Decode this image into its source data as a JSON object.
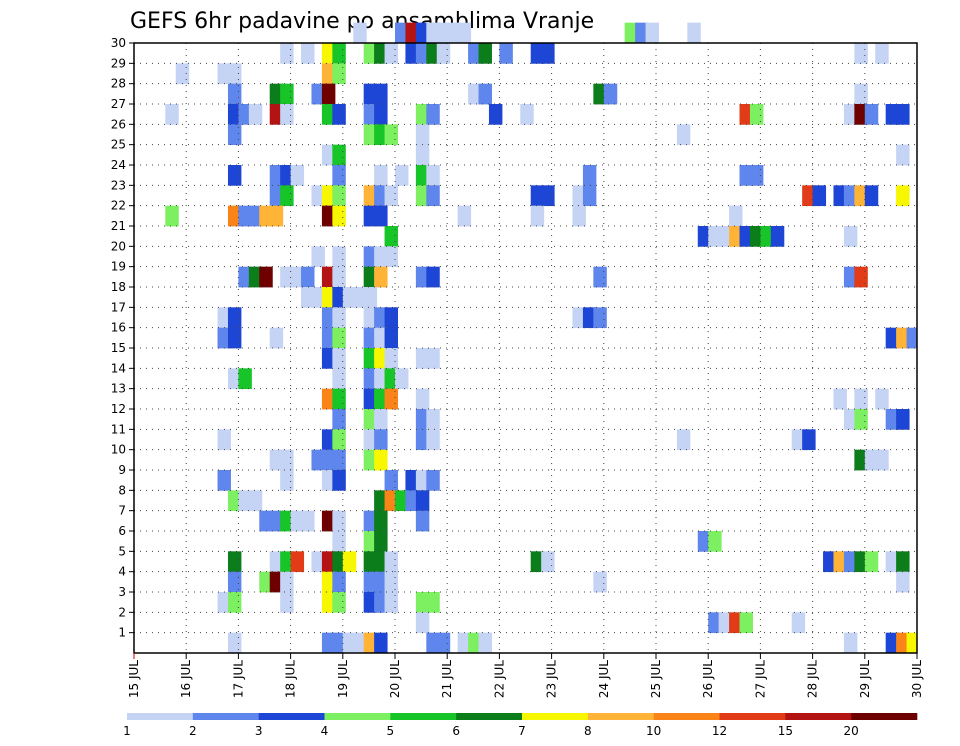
{
  "chart_data": {
    "type": "heatmap",
    "title": "GEFS 6hr padavine po ansamblima Vranje",
    "xlabel": "",
    "ylabel": "",
    "x_ticks": [
      "15 JUL",
      "16 JUL",
      "17 JUL",
      "18 JUL",
      "19 JUL",
      "20 JUL",
      "21 JUL",
      "22 JUL",
      "23 JUL",
      "24 JUL",
      "25 JUL",
      "26 JUL",
      "27 JUL",
      "28 JUL",
      "29 JUL",
      "30 JUL"
    ],
    "x_range": [
      0,
      15
    ],
    "x_unit": "days from 15 JUL",
    "time_step_hours": 6,
    "y_ticks": [
      "1",
      "2",
      "3",
      "4",
      "5",
      "6",
      "7",
      "8",
      "9",
      "10",
      "11",
      "12",
      "13",
      "14",
      "15",
      "16",
      "17",
      "18",
      "19",
      "20",
      "21",
      "22",
      "23",
      "24",
      "25",
      "26",
      "27",
      "28",
      "29",
      "30"
    ],
    "y_range": [
      0,
      30
    ],
    "grid": "dotted",
    "colorbar": {
      "placement": "bottom",
      "labels": [
        "1",
        "2",
        "3",
        "4",
        "5",
        "6",
        "7",
        "8",
        "10",
        "12",
        "15",
        "20"
      ],
      "colors": [
        "#c5d3f5",
        "#5f86ec",
        "#1e46d6",
        "#7cf060",
        "#18c528",
        "#0b7d1a",
        "#f7f701",
        "#ffb437",
        "#fb8419",
        "#e23b17",
        "#b41313",
        "#6e0000"
      ]
    },
    "cells": [
      [
        30,
        4.2,
        0
      ],
      [
        30,
        5.0,
        1
      ],
      [
        30,
        5.2,
        10
      ],
      [
        30,
        5.4,
        2
      ],
      [
        30,
        5.6,
        0
      ],
      [
        30,
        5.8,
        0
      ],
      [
        30,
        6.0,
        0
      ],
      [
        30,
        6.2,
        0
      ],
      [
        30,
        9.4,
        3
      ],
      [
        30,
        9.6,
        1
      ],
      [
        30,
        9.8,
        0
      ],
      [
        30,
        10.6,
        0
      ],
      [
        29,
        2.8,
        0
      ],
      [
        29,
        3.2,
        0
      ],
      [
        29,
        3.6,
        6
      ],
      [
        29,
        3.8,
        4
      ],
      [
        29,
        4.4,
        3
      ],
      [
        29,
        4.6,
        5
      ],
      [
        29,
        4.8,
        0
      ],
      [
        29,
        5.2,
        2
      ],
      [
        29,
        5.4,
        1
      ],
      [
        29,
        5.6,
        5
      ],
      [
        29,
        5.8,
        0
      ],
      [
        29,
        6.4,
        1
      ],
      [
        29,
        6.6,
        5
      ],
      [
        29,
        7.0,
        1
      ],
      [
        29,
        7.6,
        2
      ],
      [
        29,
        7.8,
        2
      ],
      [
        29,
        13.8,
        0
      ],
      [
        29,
        14.2,
        0
      ],
      [
        28,
        0.8,
        0
      ],
      [
        28,
        1.6,
        0
      ],
      [
        28,
        1.8,
        0
      ],
      [
        28,
        3.6,
        7
      ],
      [
        28,
        3.8,
        3
      ],
      [
        27,
        1.8,
        1
      ],
      [
        27,
        2.6,
        5
      ],
      [
        27,
        2.8,
        4
      ],
      [
        27,
        3.4,
        1
      ],
      [
        27,
        3.6,
        11
      ],
      [
        27,
        4.4,
        2
      ],
      [
        27,
        4.6,
        2
      ],
      [
        27,
        6.4,
        0
      ],
      [
        27,
        6.6,
        1
      ],
      [
        27,
        8.8,
        5
      ],
      [
        27,
        9.0,
        1
      ],
      [
        27,
        13.8,
        0
      ],
      [
        26,
        0.6,
        0
      ],
      [
        26,
        1.8,
        2
      ],
      [
        26,
        2.0,
        1
      ],
      [
        26,
        2.2,
        0
      ],
      [
        26,
        2.6,
        10
      ],
      [
        26,
        2.8,
        0
      ],
      [
        26,
        3.6,
        4
      ],
      [
        26,
        3.8,
        2
      ],
      [
        26,
        4.4,
        1
      ],
      [
        26,
        4.6,
        2
      ],
      [
        26,
        5.4,
        3
      ],
      [
        26,
        5.6,
        1
      ],
      [
        26,
        6.8,
        2
      ],
      [
        26,
        7.4,
        0
      ],
      [
        26,
        11.6,
        9
      ],
      [
        26,
        11.8,
        3
      ],
      [
        26,
        13.6,
        0
      ],
      [
        26,
        13.8,
        11
      ],
      [
        26,
        14.0,
        1
      ],
      [
        26,
        14.4,
        2
      ],
      [
        26,
        14.6,
        2
      ],
      [
        25,
        1.8,
        1
      ],
      [
        25,
        4.4,
        3
      ],
      [
        25,
        4.6,
        4
      ],
      [
        25,
        4.8,
        3
      ],
      [
        25,
        5.4,
        0
      ],
      [
        25,
        10.4,
        0
      ],
      [
        24,
        3.6,
        0
      ],
      [
        24,
        3.8,
        4
      ],
      [
        24,
        5.4,
        0
      ],
      [
        24,
        14.6,
        0
      ],
      [
        23,
        1.8,
        2
      ],
      [
        23,
        2.6,
        1
      ],
      [
        23,
        2.8,
        2
      ],
      [
        23,
        3.0,
        0
      ],
      [
        23,
        3.8,
        1
      ],
      [
        23,
        4.6,
        0
      ],
      [
        23,
        5.0,
        0
      ],
      [
        23,
        5.4,
        4
      ],
      [
        23,
        5.6,
        0
      ],
      [
        23,
        8.6,
        1
      ],
      [
        23,
        11.6,
        1
      ],
      [
        23,
        11.8,
        1
      ],
      [
        22,
        2.6,
        1
      ],
      [
        22,
        2.8,
        4
      ],
      [
        22,
        3.4,
        0
      ],
      [
        22,
        3.6,
        6
      ],
      [
        22,
        3.8,
        3
      ],
      [
        22,
        4.4,
        7
      ],
      [
        22,
        4.6,
        1
      ],
      [
        22,
        4.8,
        0
      ],
      [
        22,
        5.4,
        3
      ],
      [
        22,
        5.6,
        1
      ],
      [
        22,
        7.6,
        2
      ],
      [
        22,
        7.8,
        2
      ],
      [
        22,
        8.4,
        0
      ],
      [
        22,
        8.6,
        1
      ],
      [
        22,
        12.8,
        9
      ],
      [
        22,
        13.0,
        2
      ],
      [
        22,
        13.4,
        2
      ],
      [
        22,
        13.6,
        1
      ],
      [
        22,
        13.8,
        7
      ],
      [
        22,
        14.0,
        2
      ],
      [
        22,
        14.6,
        6
      ],
      [
        21,
        0.6,
        3
      ],
      [
        21,
        1.8,
        8
      ],
      [
        21,
        2.0,
        1
      ],
      [
        21,
        2.2,
        1
      ],
      [
        21,
        2.4,
        7
      ],
      [
        21,
        2.6,
        7
      ],
      [
        21,
        3.6,
        11
      ],
      [
        21,
        3.8,
        6
      ],
      [
        21,
        4.4,
        2
      ],
      [
        21,
        4.6,
        2
      ],
      [
        21,
        6.2,
        0
      ],
      [
        21,
        7.6,
        0
      ],
      [
        21,
        8.4,
        0
      ],
      [
        21,
        11.4,
        0
      ],
      [
        20,
        4.8,
        4
      ],
      [
        20,
        10.8,
        2
      ],
      [
        20,
        11.0,
        0
      ],
      [
        20,
        11.2,
        0
      ],
      [
        20,
        11.4,
        7
      ],
      [
        20,
        11.6,
        2
      ],
      [
        20,
        11.8,
        5
      ],
      [
        20,
        12.0,
        4
      ],
      [
        20,
        12.2,
        2
      ],
      [
        20,
        13.6,
        0
      ],
      [
        19,
        3.4,
        0
      ],
      [
        19,
        3.8,
        0
      ],
      [
        19,
        4.4,
        1
      ],
      [
        19,
        4.6,
        0
      ],
      [
        19,
        4.8,
        0
      ],
      [
        18,
        2.0,
        1
      ],
      [
        18,
        2.2,
        5
      ],
      [
        18,
        2.4,
        11
      ],
      [
        18,
        2.8,
        0
      ],
      [
        18,
        3.0,
        0
      ],
      [
        18,
        3.2,
        1
      ],
      [
        18,
        3.6,
        10
      ],
      [
        18,
        3.8,
        0
      ],
      [
        18,
        4.4,
        5
      ],
      [
        18,
        4.6,
        7
      ],
      [
        18,
        5.4,
        1
      ],
      [
        18,
        5.6,
        2
      ],
      [
        18,
        8.8,
        1
      ],
      [
        18,
        13.6,
        1
      ],
      [
        18,
        13.8,
        9
      ],
      [
        17,
        3.2,
        0
      ],
      [
        17,
        3.4,
        0
      ],
      [
        17,
        3.6,
        6
      ],
      [
        17,
        3.8,
        2
      ],
      [
        17,
        4.0,
        0
      ],
      [
        17,
        4.2,
        0
      ],
      [
        17,
        4.4,
        0
      ],
      [
        16,
        1.6,
        0
      ],
      [
        16,
        1.8,
        2
      ],
      [
        16,
        3.6,
        1
      ],
      [
        16,
        3.8,
        0
      ],
      [
        16,
        4.4,
        0
      ],
      [
        16,
        4.6,
        1
      ],
      [
        16,
        4.8,
        2
      ],
      [
        16,
        8.4,
        0
      ],
      [
        16,
        8.6,
        2
      ],
      [
        16,
        8.8,
        1
      ],
      [
        16,
        15.0,
        1
      ],
      [
        15,
        1.6,
        1
      ],
      [
        15,
        1.8,
        2
      ],
      [
        15,
        2.6,
        0
      ],
      [
        15,
        3.6,
        1
      ],
      [
        15,
        3.8,
        3
      ],
      [
        15,
        4.4,
        1
      ],
      [
        15,
        4.6,
        0
      ],
      [
        15,
        4.8,
        2
      ],
      [
        15,
        14.4,
        2
      ],
      [
        15,
        14.6,
        7
      ],
      [
        15,
        14.8,
        1
      ],
      [
        14,
        3.6,
        2
      ],
      [
        14,
        3.8,
        0
      ],
      [
        14,
        4.4,
        4
      ],
      [
        14,
        4.6,
        6
      ],
      [
        14,
        4.8,
        0
      ],
      [
        14,
        5.4,
        0
      ],
      [
        14,
        5.6,
        0
      ],
      [
        13,
        1.8,
        0
      ],
      [
        13,
        2.0,
        4
      ],
      [
        13,
        3.8,
        0
      ],
      [
        13,
        4.4,
        1
      ],
      [
        13,
        4.6,
        0
      ],
      [
        13,
        4.8,
        4
      ],
      [
        13,
        5.0,
        0
      ],
      [
        12,
        3.6,
        8
      ],
      [
        12,
        3.8,
        4
      ],
      [
        12,
        4.4,
        2
      ],
      [
        12,
        4.6,
        4
      ],
      [
        12,
        4.8,
        8
      ],
      [
        12,
        5.4,
        0
      ],
      [
        12,
        13.4,
        0
      ],
      [
        12,
        13.8,
        0
      ],
      [
        12,
        14.2,
        0
      ],
      [
        11,
        3.8,
        1
      ],
      [
        11,
        4.4,
        3
      ],
      [
        11,
        4.6,
        0
      ],
      [
        11,
        5.4,
        1
      ],
      [
        11,
        5.6,
        0
      ],
      [
        11,
        13.6,
        0
      ],
      [
        11,
        13.8,
        3
      ],
      [
        11,
        14.4,
        1
      ],
      [
        11,
        14.6,
        2
      ],
      [
        10,
        1.6,
        0
      ],
      [
        10,
        3.6,
        2
      ],
      [
        10,
        3.8,
        3
      ],
      [
        10,
        4.4,
        0
      ],
      [
        10,
        4.6,
        1
      ],
      [
        10,
        5.4,
        1
      ],
      [
        10,
        5.6,
        0
      ],
      [
        10,
        10.4,
        0
      ],
      [
        10,
        12.6,
        0
      ],
      [
        10,
        12.8,
        2
      ],
      [
        9,
        2.6,
        0
      ],
      [
        9,
        2.8,
        0
      ],
      [
        9,
        3.4,
        1
      ],
      [
        9,
        3.6,
        1
      ],
      [
        9,
        3.8,
        1
      ],
      [
        9,
        4.4,
        3
      ],
      [
        9,
        4.6,
        6
      ],
      [
        9,
        13.8,
        5
      ],
      [
        9,
        14.0,
        0
      ],
      [
        9,
        14.2,
        0
      ],
      [
        8,
        1.6,
        1
      ],
      [
        8,
        2.8,
        0
      ],
      [
        8,
        3.6,
        0
      ],
      [
        8,
        3.8,
        2
      ],
      [
        8,
        4.8,
        1
      ],
      [
        8,
        5.2,
        2
      ],
      [
        8,
        5.4,
        0
      ],
      [
        8,
        5.6,
        1
      ],
      [
        7,
        1.8,
        3
      ],
      [
        7,
        2.0,
        0
      ],
      [
        7,
        2.2,
        0
      ],
      [
        7,
        4.6,
        5
      ],
      [
        7,
        4.8,
        8
      ],
      [
        7,
        5.0,
        4
      ],
      [
        7,
        5.2,
        1
      ],
      [
        7,
        5.4,
        2
      ],
      [
        6,
        2.4,
        1
      ],
      [
        6,
        2.6,
        1
      ],
      [
        6,
        2.8,
        4
      ],
      [
        6,
        3.0,
        0
      ],
      [
        6,
        3.2,
        0
      ],
      [
        6,
        3.6,
        11
      ],
      [
        6,
        3.8,
        0
      ],
      [
        6,
        4.4,
        1
      ],
      [
        6,
        4.6,
        5
      ],
      [
        6,
        5.4,
        1
      ],
      [
        5,
        3.8,
        0
      ],
      [
        5,
        4.4,
        3
      ],
      [
        5,
        4.6,
        5
      ],
      [
        5,
        10.8,
        1
      ],
      [
        5,
        11.0,
        3
      ],
      [
        4,
        1.8,
        5
      ],
      [
        4,
        2.6,
        0
      ],
      [
        4,
        2.8,
        4
      ],
      [
        4,
        3.0,
        9
      ],
      [
        4,
        3.4,
        0
      ],
      [
        4,
        3.6,
        10
      ],
      [
        4,
        3.8,
        5
      ],
      [
        4,
        4.0,
        6
      ],
      [
        4,
        4.4,
        5
      ],
      [
        4,
        4.6,
        5
      ],
      [
        4,
        4.8,
        0
      ],
      [
        4,
        7.6,
        5
      ],
      [
        4,
        7.8,
        0
      ],
      [
        4,
        13.2,
        2
      ],
      [
        4,
        13.4,
        7
      ],
      [
        4,
        13.6,
        1
      ],
      [
        4,
        13.8,
        5
      ],
      [
        4,
        14.0,
        3
      ],
      [
        4,
        14.4,
        0
      ],
      [
        4,
        14.6,
        5
      ],
      [
        3,
        1.8,
        1
      ],
      [
        3,
        2.4,
        3
      ],
      [
        3,
        2.6,
        11
      ],
      [
        3,
        2.8,
        0
      ],
      [
        3,
        3.6,
        6
      ],
      [
        3,
        3.8,
        1
      ],
      [
        3,
        4.4,
        1
      ],
      [
        3,
        4.6,
        1
      ],
      [
        3,
        4.8,
        0
      ],
      [
        3,
        8.8,
        0
      ],
      [
        3,
        14.6,
        0
      ],
      [
        2,
        1.6,
        0
      ],
      [
        2,
        1.8,
        3
      ],
      [
        2,
        2.8,
        0
      ],
      [
        2,
        3.6,
        6
      ],
      [
        2,
        3.8,
        3
      ],
      [
        2,
        4.4,
        2
      ],
      [
        2,
        4.6,
        1
      ],
      [
        2,
        4.8,
        0
      ],
      [
        2,
        5.4,
        3
      ],
      [
        2,
        5.6,
        3
      ],
      [
        1,
        5.4,
        0
      ],
      [
        1,
        11.0,
        1
      ],
      [
        1,
        11.2,
        0
      ],
      [
        1,
        11.4,
        9
      ],
      [
        1,
        11.6,
        3
      ],
      [
        1,
        12.6,
        0
      ],
      [
        0,
        1.8,
        0
      ],
      [
        0,
        3.6,
        1
      ],
      [
        0,
        3.8,
        1
      ],
      [
        0,
        4.0,
        0
      ],
      [
        0,
        4.2,
        0
      ],
      [
        0,
        4.4,
        7
      ],
      [
        0,
        4.6,
        2
      ],
      [
        0,
        5.6,
        1
      ],
      [
        0,
        5.8,
        1
      ],
      [
        0,
        6.2,
        0
      ],
      [
        0,
        6.4,
        3
      ],
      [
        0,
        6.6,
        0
      ],
      [
        0,
        13.6,
        0
      ],
      [
        0,
        14.4,
        2
      ],
      [
        0,
        14.6,
        8
      ],
      [
        0,
        14.8,
        6
      ]
    ]
  }
}
